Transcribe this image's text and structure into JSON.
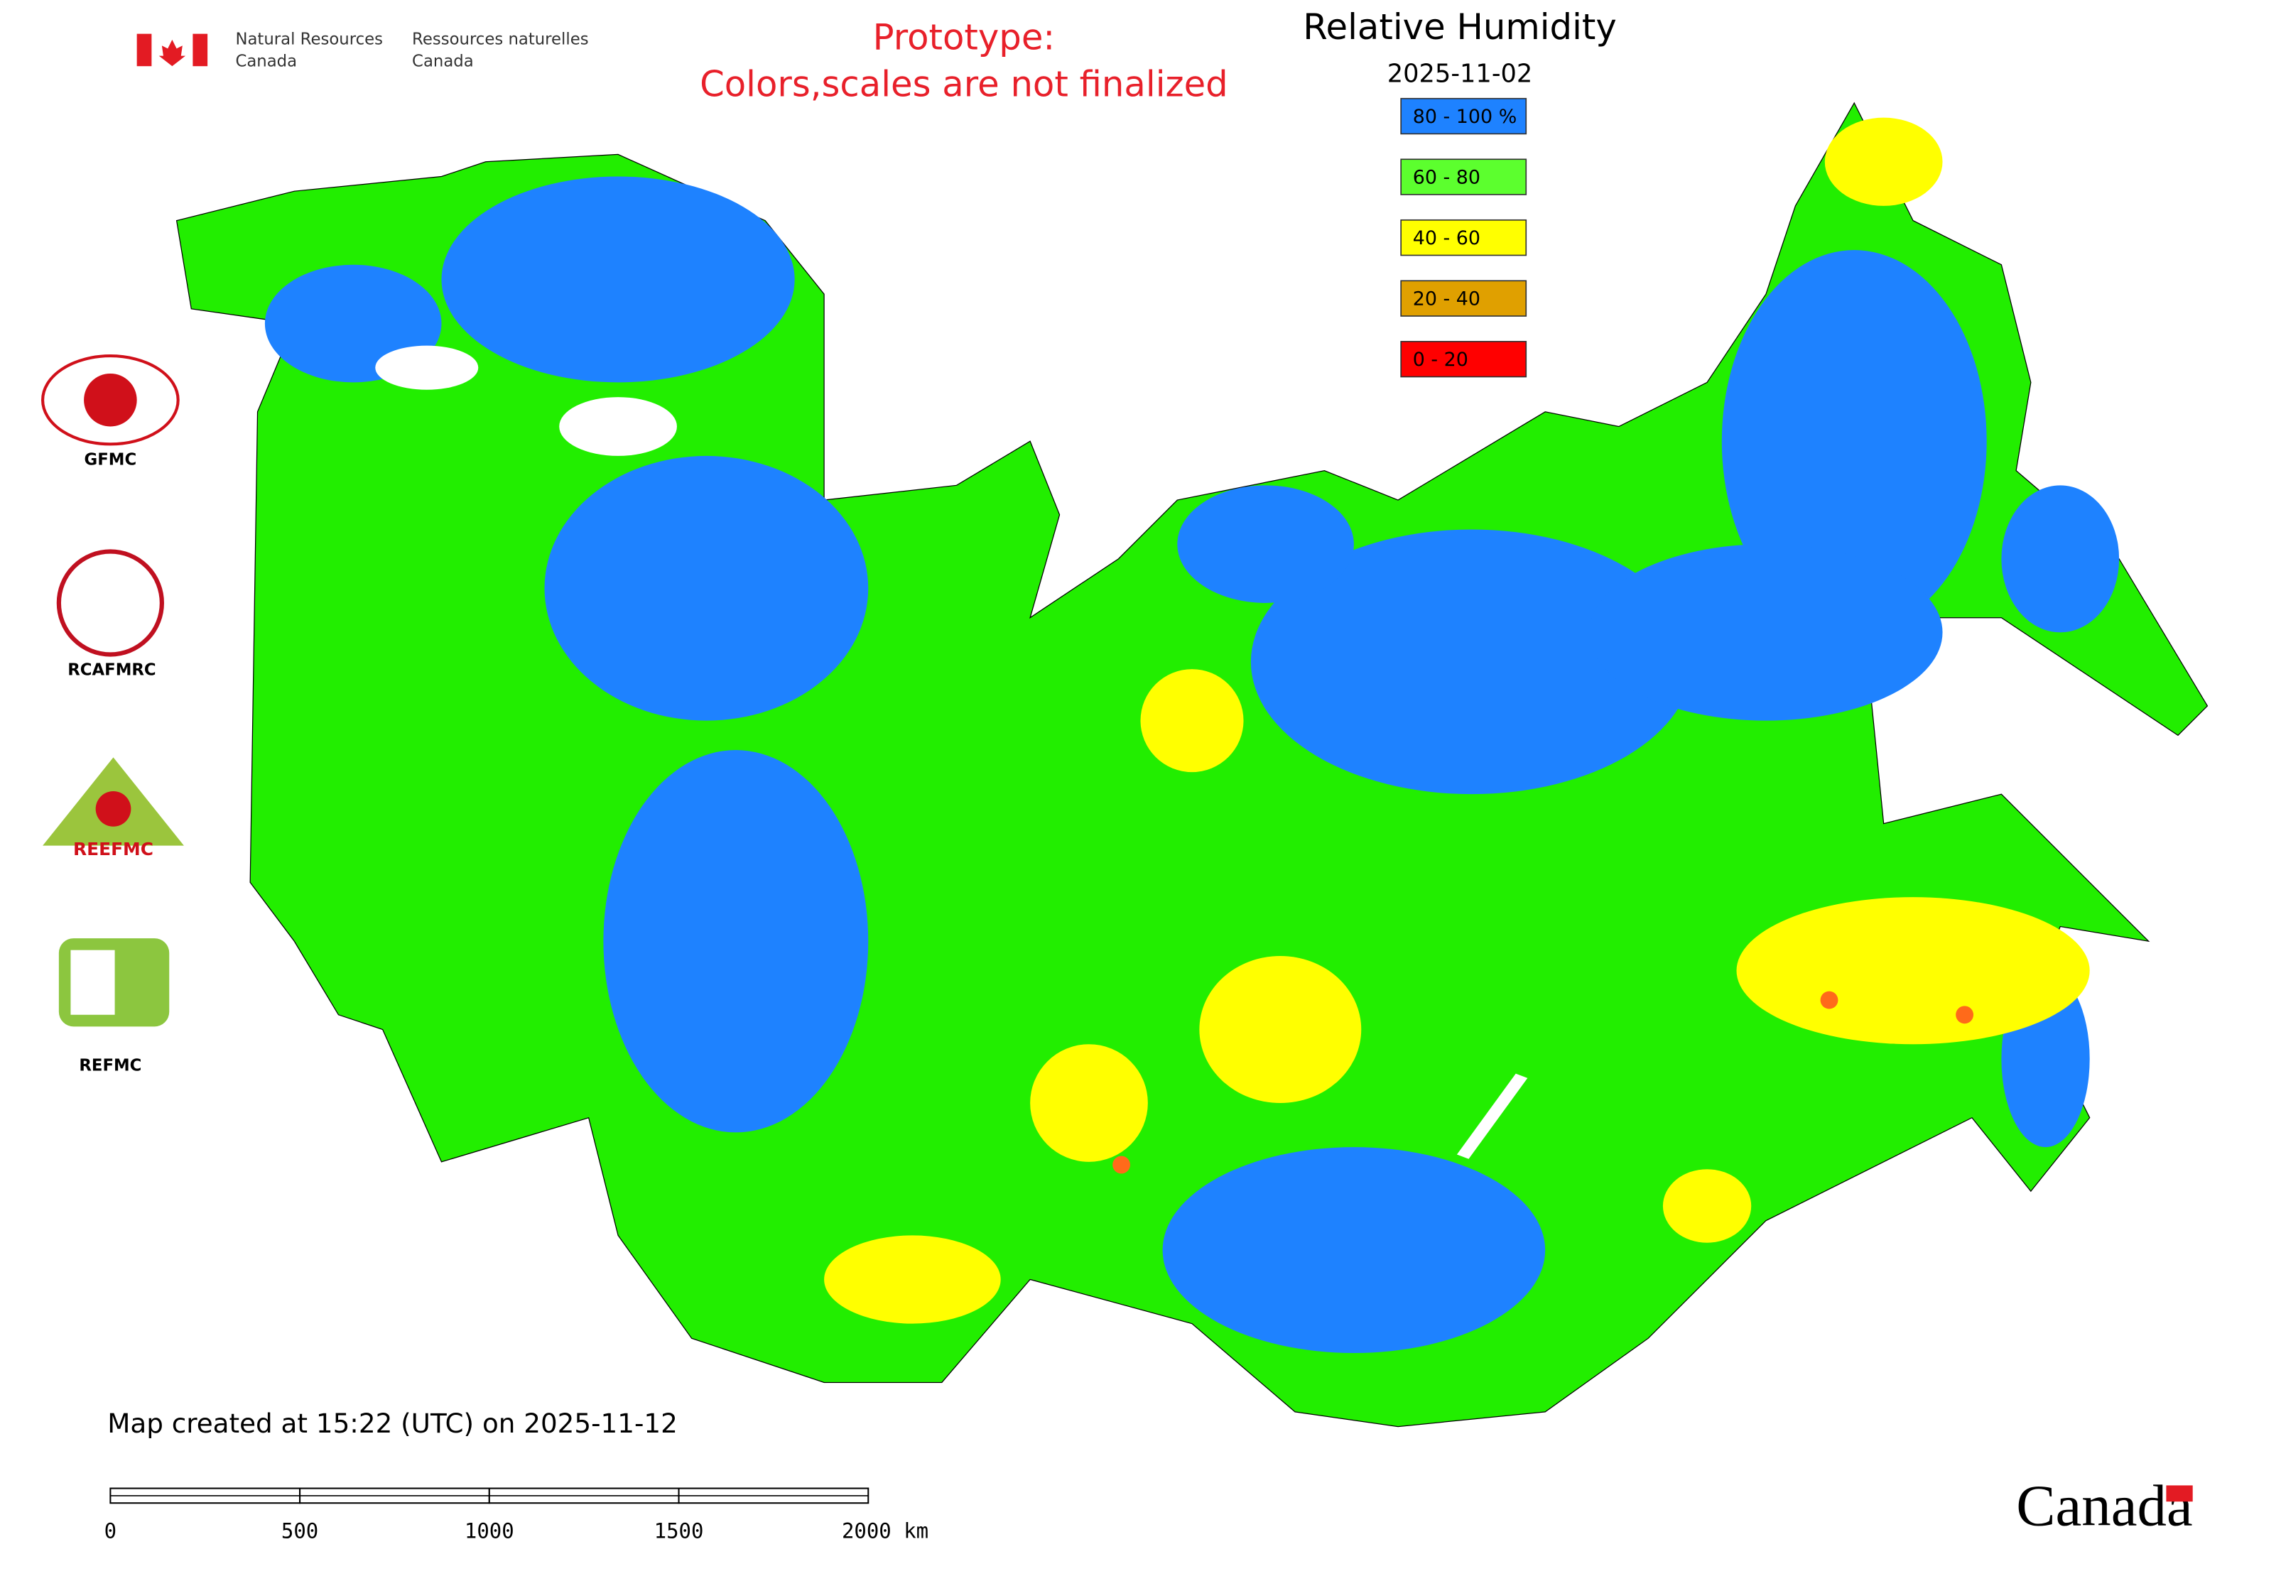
{
  "header": {
    "org_en": [
      "Natural Resources",
      "Canada"
    ],
    "org_fr": [
      "Ressources naturelles",
      "Canada"
    ]
  },
  "notice": [
    "Prototype:",
    "Colors,scales are not finalized"
  ],
  "title": "Relative Humidity",
  "date": "2025-11-02",
  "legend": [
    {
      "label": "80 - 100 %",
      "color": "#1e82ff"
    },
    {
      "label": "60 - 80",
      "color": "#5cff2e"
    },
    {
      "label": "40 - 60",
      "color": "#ffff00"
    },
    {
      "label": "20 - 40",
      "color": "#e0a000"
    },
    {
      "label": "0 - 20",
      "color": "#ff0000"
    }
  ],
  "logos": [
    "GFMC",
    "RCAFMRC",
    "REEFMC",
    "REFMC"
  ],
  "footer": {
    "created": "Map created at 15:22 (UTC) on 2025-11-12",
    "scale_labels": [
      "0",
      "500",
      "1000",
      "1500",
      "2000 km"
    ],
    "wordmark": "Canada"
  }
}
